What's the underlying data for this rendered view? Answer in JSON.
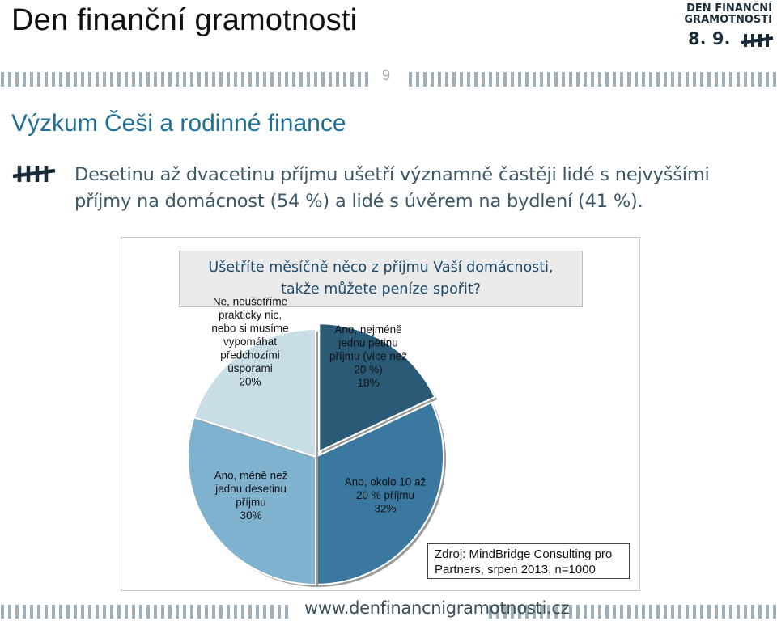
{
  "header": {
    "title": "Den finanční gramotnosti",
    "page_number": "9",
    "logo": {
      "line1": "DEN FINANČNÍ",
      "line2": "GRAMOTNOSTI",
      "date": "8. 9."
    }
  },
  "section_title": "Výzkum Češi a rodinné finance",
  "bullet": {
    "line1": "Desetinu až dvacetinu příjmu ušetří významně častěji lidé s nejvyššími",
    "line2": "příjmy na domácnost (54 %) a lidé s úvěrem na bydlení (41 %)."
  },
  "question": {
    "line1": "Ušetříte měsíčně něco z příjmu Vaší domácnosti,",
    "line2": "takže můžete peníze spořit?"
  },
  "chart_data": {
    "type": "pie",
    "title": "Ušetříte měsíčně něco z příjmu Vaší domácnosti, takže můžete peníze spořit?",
    "slices": [
      {
        "label_lines": [
          "Ano, nejméně",
          "jednu pětinu",
          "příjmu (více než",
          "20 %)"
        ],
        "value": 18,
        "value_label": "18%",
        "color": "#2b5a76"
      },
      {
        "label_lines": [
          "Ano, okolo 10 až",
          "20 % příjmu"
        ],
        "value": 32,
        "value_label": "32%",
        "color": "#3a78a0"
      },
      {
        "label_lines": [
          "Ano, méně než",
          "jednu desetinu",
          "příjmu"
        ],
        "value": 30,
        "value_label": "30%",
        "color": "#7fb2cf"
      },
      {
        "label_lines": [
          "Ne, neušetříme",
          "prakticky nic,",
          "nebo si musíme",
          "vypomáhat",
          "předchozími",
          "úsporami"
        ],
        "value": 20,
        "value_label": "20%",
        "color": "#c9dde7"
      }
    ]
  },
  "source": {
    "line1": "Zdroj: MindBridge Consulting pro",
    "line2": "Partners, srpen 2013, n=1000"
  },
  "footer": {
    "url": "www.denfinancnigramotnosti.cz"
  },
  "colors": {
    "accent": "#1e6f93",
    "rule": "#9fb0bb",
    "brand_dark": "#1c2d3a"
  }
}
